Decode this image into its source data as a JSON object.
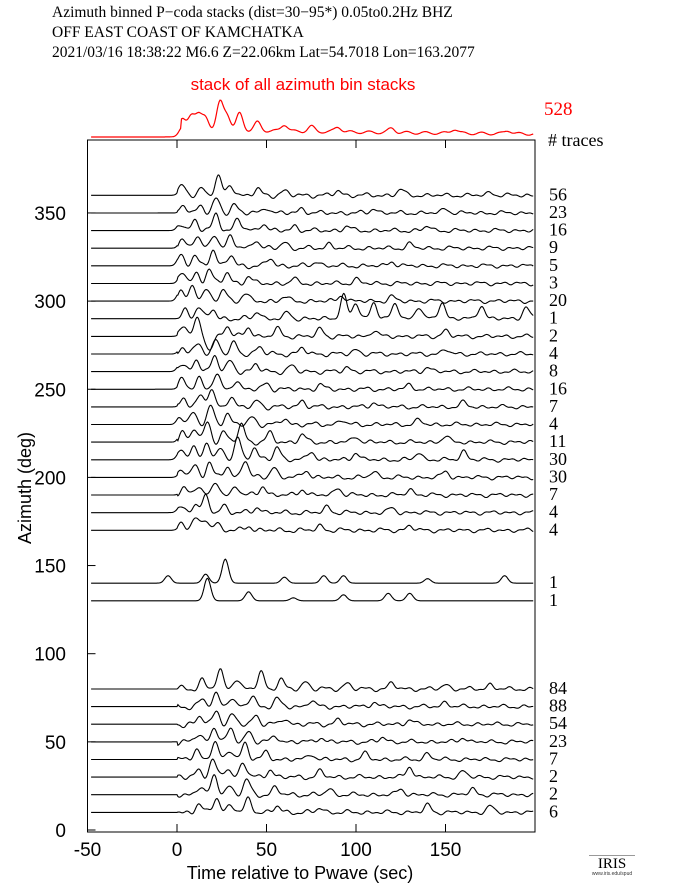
{
  "header": {
    "line1": "Azimuth binned P−coda stacks (dist=30−95*)  0.05to0.2Hz  BHZ",
    "line2": "OFF EAST COAST OF KAMCHATKA",
    "line3": "2021/03/16  18:38:22  M6.6  Z=22.06km Lat=54.7018 Lon=163.2077"
  },
  "logo": {
    "name": "IRIS",
    "url": "www.iris.edu/spud"
  },
  "chart_data": {
    "type": "line",
    "title": "Azimuth binned P-coda stacks",
    "xlabel": "Time relative to Pwave (sec)",
    "ylabel": "Azimuth (deg)",
    "xlim": [
      -50,
      200
    ],
    "ylim": [
      0,
      392
    ],
    "xticks": [
      "-50",
      "0",
      "50",
      "100",
      "150"
    ],
    "xtick_values": [
      -50,
      0,
      50,
      100,
      150
    ],
    "yticks": [
      "0",
      "50",
      "100",
      "150",
      "200",
      "250",
      "300",
      "350"
    ],
    "ytick_values": [
      0,
      50,
      100,
      150,
      200,
      250,
      300,
      350
    ],
    "count_header": "# traces",
    "colors": {
      "traces": "#000000",
      "stack": "#ff0000"
    },
    "stack": {
      "label": "stack of all azimuth bin stacks",
      "count": "528",
      "pulses": [
        [
          3,
          0.55
        ],
        [
          8,
          0.9
        ],
        [
          12,
          0.8
        ],
        [
          16,
          0.75
        ],
        [
          24,
          1.6
        ],
        [
          28,
          0.9
        ],
        [
          35,
          1.0
        ],
        [
          45,
          0.5
        ],
        [
          60,
          0.4
        ],
        [
          75,
          0.3
        ],
        [
          90,
          0.3
        ],
        [
          120,
          0.25
        ],
        [
          155,
          0.25
        ],
        [
          185,
          0.2
        ]
      ],
      "level": 0.45
    },
    "traces": [
      {
        "azimuth": 360,
        "count": "56",
        "pulses": [
          [
            3,
            0.6
          ],
          [
            14,
            0.5
          ],
          [
            23,
            1.2
          ],
          [
            30,
            0.7
          ],
          [
            45,
            0.4
          ],
          [
            60,
            0.3
          ],
          [
            90,
            0.3
          ],
          [
            125,
            0.4
          ],
          [
            175,
            0.2
          ]
        ]
      },
      {
        "azimuth": 350,
        "count": "23",
        "pulses": [
          [
            4,
            0.5
          ],
          [
            13,
            0.5
          ],
          [
            22,
            0.9
          ],
          [
            32,
            0.6
          ],
          [
            50,
            0.4
          ],
          [
            70,
            0.3
          ],
          [
            110,
            0.3
          ],
          [
            150,
            0.3
          ]
        ]
      },
      {
        "azimuth": 340,
        "count": "16",
        "pulses": [
          [
            2,
            0.5
          ],
          [
            10,
            0.7
          ],
          [
            22,
            1.1
          ],
          [
            34,
            0.8
          ],
          [
            48,
            0.5
          ],
          [
            66,
            0.3
          ],
          [
            95,
            0.3
          ],
          [
            140,
            0.3
          ]
        ]
      },
      {
        "azimuth": 330,
        "count": "9",
        "pulses": [
          [
            3,
            0.6
          ],
          [
            11,
            0.8
          ],
          [
            21,
            1.0
          ],
          [
            30,
            0.8
          ],
          [
            44,
            0.6
          ],
          [
            60,
            0.4
          ],
          [
            85,
            0.3
          ],
          [
            130,
            0.3
          ]
        ]
      },
      {
        "azimuth": 320,
        "count": "5",
        "pulses": [
          [
            2,
            0.7
          ],
          [
            10,
            0.6
          ],
          [
            20,
            1.1
          ],
          [
            30,
            0.7
          ],
          [
            52,
            0.5
          ],
          [
            78,
            0.3
          ],
          [
            120,
            0.3
          ]
        ]
      },
      {
        "azimuth": 310,
        "count": "3",
        "pulses": [
          [
            3,
            0.8
          ],
          [
            11,
            0.6
          ],
          [
            18,
            1.0
          ],
          [
            28,
            0.7
          ],
          [
            40,
            0.5
          ],
          [
            65,
            0.3
          ],
          [
            100,
            0.3
          ]
        ]
      },
      {
        "azimuth": 300,
        "count": "20",
        "pulses": [
          [
            2,
            0.7
          ],
          [
            9,
            1.0
          ],
          [
            16,
            0.8
          ],
          [
            26,
            0.8
          ],
          [
            38,
            0.5
          ],
          [
            60,
            0.3
          ],
          [
            92,
            0.4
          ],
          [
            120,
            0.3
          ]
        ]
      },
      {
        "azimuth": 290,
        "count": "1",
        "pulses": [
          [
            5,
            0.6
          ],
          [
            12,
            0.8
          ],
          [
            20,
            0.6
          ],
          [
            45,
            0.5
          ],
          [
            62,
            0.4
          ],
          [
            93,
            1.6
          ],
          [
            100,
            1.0
          ],
          [
            110,
            1.1
          ],
          [
            122,
            1.0
          ],
          [
            135,
            0.8
          ],
          [
            148,
            1.1
          ],
          [
            170,
            0.9
          ],
          [
            195,
            0.8
          ]
        ]
      },
      {
        "azimuth": 280,
        "count": "2",
        "pulses": [
          [
            4,
            0.8
          ],
          [
            11,
            1.1
          ],
          [
            18,
            -0.9
          ],
          [
            28,
            0.7
          ],
          [
            40,
            0.6
          ],
          [
            56,
            0.5
          ],
          [
            80,
            0.5
          ],
          [
            110,
            0.4
          ],
          [
            150,
            0.4
          ]
        ]
      },
      {
        "azimuth": 270,
        "count": "4",
        "pulses": [
          [
            3,
            0.5
          ],
          [
            12,
            0.7
          ],
          [
            22,
            1.0
          ],
          [
            32,
            0.7
          ],
          [
            46,
            0.5
          ],
          [
            70,
            0.4
          ],
          [
            100,
            0.3
          ],
          [
            150,
            0.3
          ]
        ]
      },
      {
        "azimuth": 260,
        "count": "8",
        "pulses": [
          [
            2,
            0.5
          ],
          [
            11,
            0.8
          ],
          [
            21,
            1.1
          ],
          [
            30,
            0.7
          ],
          [
            44,
            0.5
          ],
          [
            64,
            0.4
          ],
          [
            95,
            0.3
          ],
          [
            140,
            0.3
          ]
        ]
      },
      {
        "azimuth": 250,
        "count": "16",
        "pulses": [
          [
            3,
            0.6
          ],
          [
            12,
            0.8
          ],
          [
            22,
            1.0
          ],
          [
            33,
            0.6
          ],
          [
            50,
            0.4
          ],
          [
            80,
            0.3
          ],
          [
            130,
            0.3
          ]
        ]
      },
      {
        "azimuth": 240,
        "count": "7",
        "pulses": [
          [
            4,
            0.6
          ],
          [
            13,
            0.8
          ],
          [
            19,
            1.1
          ],
          [
            30,
            0.7
          ],
          [
            45,
            0.4
          ],
          [
            70,
            0.4
          ],
          [
            110,
            0.3
          ],
          [
            160,
            0.3
          ]
        ]
      },
      {
        "azimuth": 230,
        "count": "4",
        "pulses": [
          [
            2,
            0.6
          ],
          [
            9,
            0.8
          ],
          [
            19,
            1.2
          ],
          [
            28,
            0.7
          ],
          [
            42,
            0.5
          ],
          [
            60,
            0.4
          ],
          [
            92,
            0.3
          ],
          [
            135,
            0.3
          ]
        ]
      },
      {
        "azimuth": 220,
        "count": "11",
        "pulses": [
          [
            3,
            0.7
          ],
          [
            10,
            0.9
          ],
          [
            17,
            1.3
          ],
          [
            26,
            0.7
          ],
          [
            36,
            1.2
          ],
          [
            52,
            0.6
          ],
          [
            70,
            0.5
          ],
          [
            100,
            0.4
          ],
          [
            150,
            0.4
          ]
        ]
      },
      {
        "azimuth": 210,
        "count": "30",
        "pulses": [
          [
            2,
            0.6
          ],
          [
            9,
            0.9
          ],
          [
            17,
            1.2
          ],
          [
            24,
            0.7
          ],
          [
            34,
            1.5
          ],
          [
            43,
            0.8
          ],
          [
            56,
            0.9
          ],
          [
            75,
            0.6
          ],
          [
            100,
            0.5
          ],
          [
            135,
            0.5
          ],
          [
            160,
            0.6
          ]
        ]
      },
      {
        "azimuth": 200,
        "count": "30",
        "pulses": [
          [
            3,
            0.5
          ],
          [
            10,
            0.8
          ],
          [
            18,
            1.0
          ],
          [
            28,
            0.7
          ],
          [
            38,
            1.2
          ],
          [
            54,
            0.7
          ],
          [
            72,
            0.5
          ],
          [
            110,
            0.4
          ],
          [
            150,
            0.4
          ]
        ]
      },
      {
        "azimuth": 190,
        "count": "7",
        "pulses": [
          [
            4,
            0.5
          ],
          [
            12,
            0.7
          ],
          [
            22,
            0.8
          ],
          [
            33,
            0.6
          ],
          [
            48,
            0.6
          ],
          [
            70,
            0.4
          ],
          [
            90,
            0.5
          ],
          [
            130,
            0.4
          ]
        ]
      },
      {
        "azimuth": 180,
        "count": "4",
        "pulses": [
          [
            2,
            0.4
          ],
          [
            10,
            0.6
          ],
          [
            16,
            1.0
          ],
          [
            26,
            0.5
          ],
          [
            45,
            0.4
          ],
          [
            84,
            0.4
          ],
          [
            120,
            0.3
          ]
        ]
      },
      {
        "azimuth": 170,
        "count": "4",
        "pulses": [
          [
            3,
            0.5
          ],
          [
            10,
            0.8
          ],
          [
            16,
            0.7
          ],
          [
            22,
            0.5
          ],
          [
            40,
            0.3
          ],
          [
            80,
            0.3
          ],
          [
            130,
            0.3
          ]
        ]
      },
      {
        "azimuth": 140,
        "count": "1",
        "pulses": [
          [
            -5,
            0.5
          ],
          [
            16,
            0.6
          ],
          [
            27,
            1.6
          ],
          [
            60,
            0.4
          ],
          [
            82,
            0.5
          ],
          [
            93,
            0.5
          ],
          [
            140,
            0.3
          ],
          [
            183,
            0.5
          ]
        ],
        "quiet": true
      },
      {
        "azimuth": 130,
        "count": "1",
        "pulses": [
          [
            17,
            1.5
          ],
          [
            40,
            0.6
          ],
          [
            65,
            0.2
          ],
          [
            93,
            0.4
          ],
          [
            118,
            0.5
          ],
          [
            130,
            0.5
          ]
        ],
        "quiet": true
      },
      {
        "azimuth": 80,
        "count": "84",
        "pulses": [
          [
            14,
            0.6
          ],
          [
            24,
            1.2
          ],
          [
            33,
            0.7
          ],
          [
            47,
            1.1
          ],
          [
            58,
            0.6
          ],
          [
            72,
            0.5
          ],
          [
            95,
            0.4
          ],
          [
            120,
            0.4
          ],
          [
            150,
            0.3
          ],
          [
            175,
            0.3
          ]
        ]
      },
      {
        "azimuth": 70,
        "count": "88",
        "pulses": [
          [
            14,
            0.5
          ],
          [
            22,
            0.8
          ],
          [
            30,
            0.6
          ],
          [
            42,
            0.7
          ],
          [
            56,
            0.5
          ],
          [
            75,
            0.4
          ],
          [
            110,
            0.3
          ],
          [
            150,
            0.3
          ]
        ]
      },
      {
        "azimuth": 60,
        "count": "54",
        "pulses": [
          [
            13,
            0.5
          ],
          [
            22,
            0.9
          ],
          [
            31,
            0.6
          ],
          [
            44,
            0.6
          ],
          [
            60,
            0.4
          ],
          [
            90,
            0.3
          ],
          [
            130,
            0.3
          ]
        ]
      },
      {
        "azimuth": 50,
        "count": "23",
        "pulses": [
          [
            12,
            0.5
          ],
          [
            21,
            1.0
          ],
          [
            30,
            0.8
          ],
          [
            40,
            0.7
          ],
          [
            55,
            0.4
          ],
          [
            80,
            0.3
          ],
          [
            115,
            0.3
          ],
          [
            160,
            0.3
          ]
        ]
      },
      {
        "azimuth": 40,
        "count": "7",
        "pulses": [
          [
            11,
            0.6
          ],
          [
            21,
            1.2
          ],
          [
            30,
            0.6
          ],
          [
            38,
            1.1
          ],
          [
            50,
            0.5
          ],
          [
            75,
            0.4
          ],
          [
            105,
            0.4
          ],
          [
            140,
            0.4
          ]
        ]
      },
      {
        "azimuth": 30,
        "count": "2",
        "pulses": [
          [
            12,
            0.5
          ],
          [
            20,
            1.1
          ],
          [
            28,
            0.6
          ],
          [
            37,
            1.0
          ],
          [
            52,
            0.5
          ],
          [
            80,
            0.4
          ],
          [
            130,
            0.7
          ],
          [
            160,
            0.4
          ]
        ]
      },
      {
        "azimuth": 20,
        "count": "2",
        "pulses": [
          [
            13,
            0.6
          ],
          [
            21,
            1.2
          ],
          [
            29,
            0.6
          ],
          [
            39,
            1.0
          ],
          [
            55,
            0.5
          ],
          [
            85,
            0.4
          ],
          [
            125,
            0.4
          ],
          [
            165,
            0.4
          ]
        ]
      },
      {
        "azimuth": 10,
        "count": "6",
        "pulses": [
          [
            12,
            0.5
          ],
          [
            22,
            1.0
          ],
          [
            30,
            0.5
          ],
          [
            40,
            0.9
          ],
          [
            56,
            0.4
          ],
          [
            80,
            0.3
          ],
          [
            140,
            0.5
          ],
          [
            175,
            0.4
          ]
        ]
      }
    ]
  }
}
